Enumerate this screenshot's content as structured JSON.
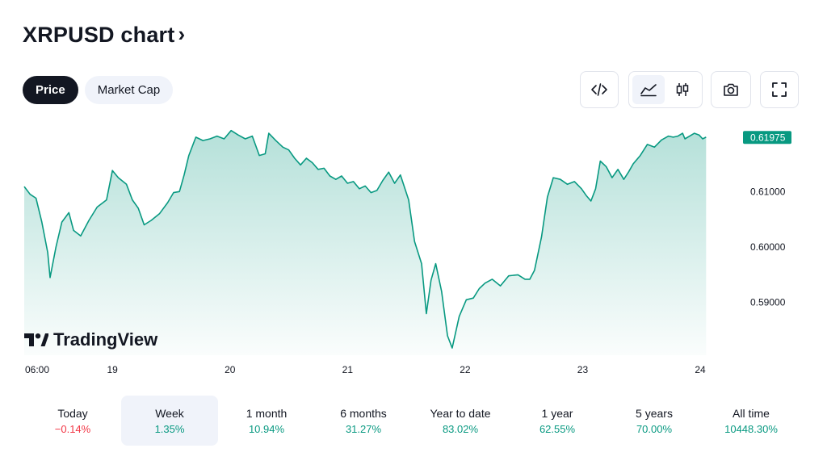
{
  "header": {
    "title": "XRPUSD chart"
  },
  "tabs": [
    {
      "label": "Price",
      "active": true
    },
    {
      "label": "Market Cap",
      "active": false
    }
  ],
  "toolbar": {
    "embed_icon": "code-icon",
    "area_icon": "area-chart-icon",
    "candle_icon": "candlestick-icon",
    "snapshot_icon": "camera-icon",
    "fullscreen_icon": "fullscreen-icon"
  },
  "watermark": {
    "text": "TradingView"
  },
  "colors": {
    "line": "#089981",
    "up": "#089981",
    "down": "#f23645",
    "text": "#131722"
  },
  "chart_data": {
    "type": "area",
    "title": "XRPUSD",
    "x_tick_labels": [
      {
        "t": 0,
        "label": "06:00"
      },
      {
        "t": 0.75,
        "label": "19"
      },
      {
        "t": 1.75,
        "label": "20"
      },
      {
        "t": 2.75,
        "label": "21"
      },
      {
        "t": 3.75,
        "label": "22"
      },
      {
        "t": 4.75,
        "label": "23"
      },
      {
        "t": 5.75,
        "label": "24"
      }
    ],
    "x_range": [
      0,
      6.1
    ],
    "y_ticks": [
      "0.61000",
      "0.60000",
      "0.59000"
    ],
    "y_range": [
      0.5805,
      0.6227
    ],
    "last_price": "0.61975",
    "series": [
      {
        "name": "XRPUSD",
        "points": [
          [
            0.0,
            0.6109
          ],
          [
            0.05,
            0.6095
          ],
          [
            0.1,
            0.6088
          ],
          [
            0.15,
            0.6045
          ],
          [
            0.2,
            0.599
          ],
          [
            0.22,
            0.5945
          ],
          [
            0.27,
            0.6
          ],
          [
            0.32,
            0.6045
          ],
          [
            0.38,
            0.6062
          ],
          [
            0.42,
            0.603
          ],
          [
            0.48,
            0.602
          ],
          [
            0.55,
            0.6048
          ],
          [
            0.62,
            0.6072
          ],
          [
            0.7,
            0.6085
          ],
          [
            0.75,
            0.6138
          ],
          [
            0.8,
            0.6125
          ],
          [
            0.87,
            0.6113
          ],
          [
            0.92,
            0.6085
          ],
          [
            0.97,
            0.607
          ],
          [
            1.02,
            0.604
          ],
          [
            1.08,
            0.6048
          ],
          [
            1.15,
            0.606
          ],
          [
            1.22,
            0.608
          ],
          [
            1.27,
            0.6098
          ],
          [
            1.32,
            0.61
          ],
          [
            1.36,
            0.613
          ],
          [
            1.4,
            0.6165
          ],
          [
            1.46,
            0.6198
          ],
          [
            1.52,
            0.6192
          ],
          [
            1.58,
            0.6195
          ],
          [
            1.64,
            0.62
          ],
          [
            1.7,
            0.6195
          ],
          [
            1.76,
            0.621
          ],
          [
            1.82,
            0.6202
          ],
          [
            1.88,
            0.6195
          ],
          [
            1.94,
            0.62
          ],
          [
            2.0,
            0.6165
          ],
          [
            2.05,
            0.6168
          ],
          [
            2.08,
            0.6205
          ],
          [
            2.14,
            0.6192
          ],
          [
            2.2,
            0.618
          ],
          [
            2.25,
            0.6175
          ],
          [
            2.3,
            0.616
          ],
          [
            2.35,
            0.6148
          ],
          [
            2.4,
            0.616
          ],
          [
            2.45,
            0.6152
          ],
          [
            2.5,
            0.614
          ],
          [
            2.55,
            0.6142
          ],
          [
            2.6,
            0.6128
          ],
          [
            2.65,
            0.6122
          ],
          [
            2.7,
            0.6128
          ],
          [
            2.75,
            0.6115
          ],
          [
            2.8,
            0.6118
          ],
          [
            2.85,
            0.6105
          ],
          [
            2.9,
            0.611
          ],
          [
            2.95,
            0.6098
          ],
          [
            3.0,
            0.6102
          ],
          [
            3.05,
            0.612
          ],
          [
            3.1,
            0.6135
          ],
          [
            3.15,
            0.6115
          ],
          [
            3.2,
            0.613
          ],
          [
            3.27,
            0.6085
          ],
          [
            3.32,
            0.601
          ],
          [
            3.38,
            0.597
          ],
          [
            3.42,
            0.588
          ],
          [
            3.46,
            0.594
          ],
          [
            3.5,
            0.597
          ],
          [
            3.55,
            0.592
          ],
          [
            3.6,
            0.584
          ],
          [
            3.64,
            0.5818
          ],
          [
            3.7,
            0.5875
          ],
          [
            3.76,
            0.5905
          ],
          [
            3.82,
            0.5908
          ],
          [
            3.87,
            0.5925
          ],
          [
            3.92,
            0.5935
          ],
          [
            3.98,
            0.5942
          ],
          [
            4.05,
            0.593
          ],
          [
            4.12,
            0.5948
          ],
          [
            4.2,
            0.595
          ],
          [
            4.26,
            0.5942
          ],
          [
            4.3,
            0.5942
          ],
          [
            4.34,
            0.5958
          ],
          [
            4.4,
            0.6018
          ],
          [
            4.45,
            0.609
          ],
          [
            4.5,
            0.6125
          ],
          [
            4.56,
            0.6122
          ],
          [
            4.62,
            0.6113
          ],
          [
            4.68,
            0.6118
          ],
          [
            4.74,
            0.6105
          ],
          [
            4.78,
            0.6093
          ],
          [
            4.82,
            0.6083
          ],
          [
            4.86,
            0.6105
          ],
          [
            4.9,
            0.6155
          ],
          [
            4.95,
            0.6145
          ],
          [
            5.0,
            0.6125
          ],
          [
            5.05,
            0.614
          ],
          [
            5.1,
            0.6122
          ],
          [
            5.14,
            0.6135
          ],
          [
            5.18,
            0.615
          ],
          [
            5.24,
            0.6165
          ],
          [
            5.3,
            0.6185
          ],
          [
            5.36,
            0.618
          ],
          [
            5.42,
            0.6193
          ],
          [
            5.48,
            0.62
          ],
          [
            5.52,
            0.6198
          ],
          [
            5.56,
            0.62
          ],
          [
            5.6,
            0.6205
          ],
          [
            5.62,
            0.6195
          ],
          [
            5.66,
            0.62
          ],
          [
            5.7,
            0.6205
          ],
          [
            5.74,
            0.6202
          ],
          [
            5.77,
            0.6195
          ],
          [
            5.8,
            0.6198
          ]
        ]
      }
    ]
  },
  "periods": [
    {
      "label": "Today",
      "value": "−0.14%",
      "sign": "neg",
      "active": false
    },
    {
      "label": "Week",
      "value": "1.35%",
      "sign": "pos",
      "active": true
    },
    {
      "label": "1 month",
      "value": "10.94%",
      "sign": "pos",
      "active": false
    },
    {
      "label": "6 months",
      "value": "31.27%",
      "sign": "pos",
      "active": false
    },
    {
      "label": "Year to date",
      "value": "83.02%",
      "sign": "pos",
      "active": false
    },
    {
      "label": "1 year",
      "value": "62.55%",
      "sign": "pos",
      "active": false
    },
    {
      "label": "5 years",
      "value": "70.00%",
      "sign": "pos",
      "active": false
    },
    {
      "label": "All time",
      "value": "10448.30%",
      "sign": "pos",
      "active": false
    }
  ]
}
